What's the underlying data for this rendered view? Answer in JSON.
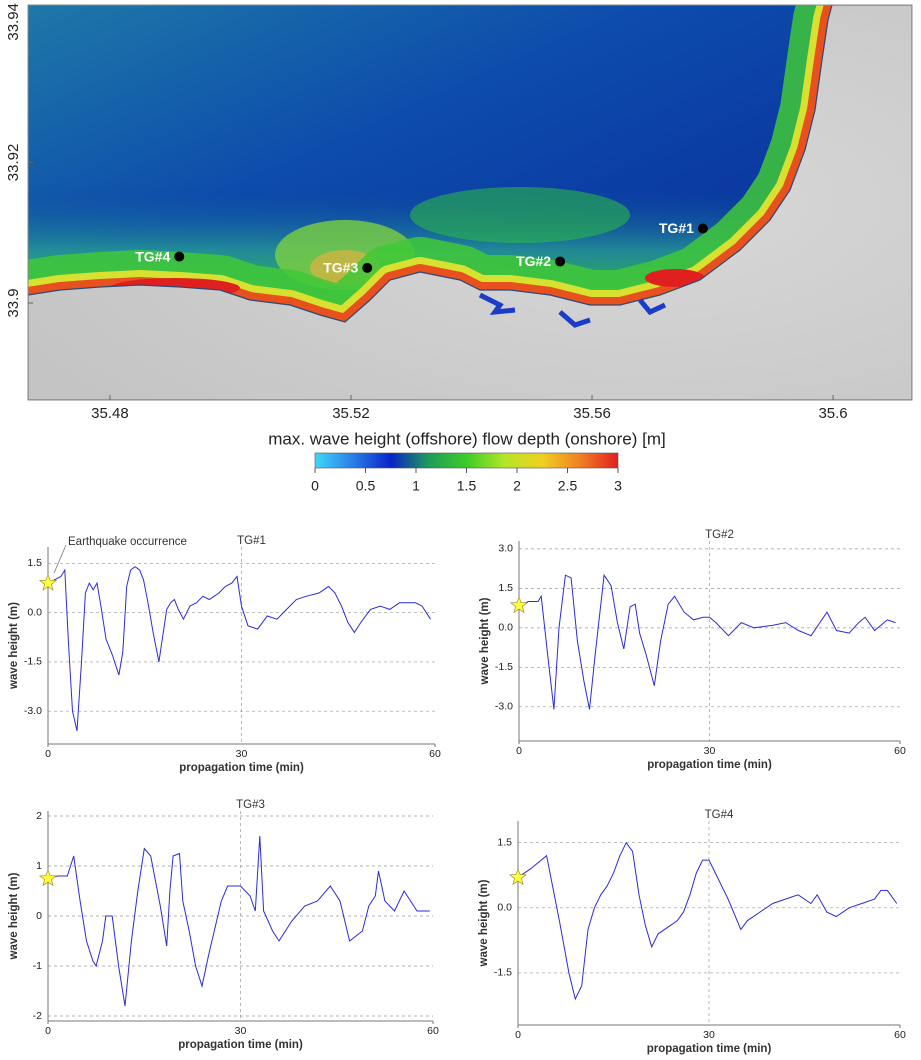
{
  "chart_data": [
    {
      "type": "map",
      "xlim": [
        35.4664,
        35.6131
      ],
      "ylim": [
        33.8862,
        33.9424
      ],
      "xticks": [
        35.48,
        35.52,
        35.56,
        35.6
      ],
      "yticks": [
        33.94,
        33.92,
        33.9
      ],
      "points": [
        {
          "label": "TG#1",
          "x": 35.5784,
          "y": 33.9106
        },
        {
          "label": "TG#2",
          "x": 35.5547,
          "y": 33.9059
        },
        {
          "label": "TG#3",
          "x": 35.5227,
          "y": 33.905
        },
        {
          "label": "TG#4",
          "x": 35.4915,
          "y": 33.9066
        }
      ],
      "point_color": "#000000",
      "colorbar": {
        "title": "max. wave height (offshore) flow depth (onshore) [m]",
        "lim": [
          0,
          3
        ],
        "ticks": [
          0,
          0.5,
          1,
          1.5,
          2,
          2.5,
          3
        ],
        "colors": [
          "#3fd7f7",
          "#2a7fe6",
          "#0a22c8",
          "#1f9c5a",
          "#3ccc28",
          "#b4e628",
          "#f0d020",
          "#f08020",
          "#e02020"
        ]
      }
    },
    {
      "type": "line",
      "title": "TG#1",
      "annotation": "Earthquake occurrence",
      "x_label": "propagation time (min)",
      "y_label": "wave height (m)",
      "xlim": [
        0,
        60
      ],
      "ylim": [
        -4,
        2
      ],
      "xticks": [
        0,
        30,
        60
      ],
      "yticks": [
        1.5,
        {
          "value": 0,
          "label": "0.0"
        },
        -1.5,
        {
          "value": -3,
          "label": "-3.0"
        }
      ],
      "color": "#2b2bdc",
      "start_marker_color": "#ffff40",
      "x": [
        0,
        1,
        2,
        2.6,
        3.2,
        3.8,
        4.5,
        5.2,
        5.8,
        6.4,
        7,
        7.6,
        8.2,
        9,
        10,
        11,
        11.6,
        12.2,
        12.8,
        13.5,
        14.2,
        14.8,
        15.5,
        16.3,
        17.2,
        17.8,
        18.4,
        19,
        19.6,
        20.2,
        21,
        22,
        23,
        24,
        25,
        26.5,
        27.5,
        28.5,
        29.3,
        30,
        31,
        32.5,
        34,
        35.5,
        37,
        38.5,
        40,
        42,
        43.5,
        44.5,
        45.5,
        46.5,
        47.5,
        48.5,
        50,
        51.5,
        53,
        54.5,
        56,
        57,
        58,
        59.3
      ],
      "values": [
        0.9,
        1.0,
        1.1,
        1.3,
        -1.0,
        -3.0,
        -3.6,
        -1.5,
        0.6,
        0.9,
        0.7,
        0.9,
        0.2,
        -0.8,
        -1.3,
        -1.9,
        -1.2,
        0.8,
        1.3,
        1.4,
        1.3,
        1.0,
        0.3,
        -0.6,
        -1.5,
        -0.7,
        0.1,
        0.3,
        0.4,
        0.1,
        -0.2,
        0.2,
        0.3,
        0.5,
        0.4,
        0.6,
        0.8,
        0.9,
        1.1,
        0.2,
        -0.4,
        -0.5,
        -0.1,
        -0.2,
        0.1,
        0.4,
        0.5,
        0.6,
        0.8,
        0.6,
        0.2,
        -0.3,
        -0.6,
        -0.3,
        0.1,
        0.2,
        0.1,
        0.3,
        0.3,
        0.3,
        0.2,
        -0.2
      ]
    },
    {
      "type": "line",
      "title": "TG#2",
      "x_label": "propagation time (min)",
      "y_label": "wave height (m)",
      "xlim": [
        0,
        60
      ],
      "ylim": [
        -4.3,
        3.3
      ],
      "xticks": [
        0,
        30,
        60
      ],
      "yticks": [
        {
          "value": 3,
          "label": "3.0"
        },
        1.5,
        {
          "value": 0,
          "label": "0.0"
        },
        -1.5,
        {
          "value": -3,
          "label": "-3.0"
        }
      ],
      "color": "#2b2bdc",
      "start_marker_color": "#ffff40",
      "x": [
        0,
        1.5,
        3,
        3.5,
        4.5,
        5.5,
        6.3,
        7.3,
        8.2,
        9.2,
        10.2,
        11.1,
        12,
        13.4,
        14.5,
        15.5,
        16.5,
        17.5,
        18.3,
        19,
        20,
        21.3,
        22.3,
        23.5,
        24.5,
        26,
        27.5,
        29,
        30,
        31,
        33,
        35,
        37,
        40,
        42,
        44,
        46,
        48.5,
        50,
        52,
        53.5,
        54.5,
        56,
        58,
        59.3
      ],
      "values": [
        0.85,
        1.0,
        1.0,
        1.2,
        -1.0,
        -3.1,
        0.0,
        2.0,
        1.9,
        -0.5,
        -2.0,
        -3.1,
        -1.0,
        2.0,
        1.6,
        0.2,
        -0.8,
        0.8,
        0.9,
        -0.2,
        -1.0,
        -2.2,
        -0.5,
        0.9,
        1.2,
        0.6,
        0.3,
        0.4,
        0.4,
        0.2,
        -0.3,
        0.2,
        0.0,
        0.1,
        0.2,
        -0.1,
        -0.3,
        0.6,
        -0.1,
        -0.2,
        0.2,
        0.4,
        -0.1,
        0.3,
        0.2
      ]
    },
    {
      "type": "line",
      "title": "TG#3",
      "x_label": "propagation time (min)",
      "y_label": "wave height (m)",
      "xlim": [
        0,
        60
      ],
      "ylim": [
        -2.1,
        2.1
      ],
      "xticks": [
        0,
        30,
        60
      ],
      "yticks": [
        2,
        1,
        0,
        -1,
        -2
      ],
      "color": "#2b2bdc",
      "start_marker_color": "#ffff40",
      "x": [
        0,
        1.5,
        3,
        4,
        5,
        6,
        7,
        7.5,
        8.5,
        9,
        10,
        11,
        12,
        13,
        14,
        15,
        16,
        17.5,
        18.5,
        19,
        19.5,
        20.5,
        21,
        22,
        23,
        24,
        25,
        27,
        28,
        30,
        31.5,
        32.3,
        33,
        33.6,
        35,
        36,
        38,
        40,
        42,
        44,
        45.5,
        47,
        49,
        50,
        51,
        51.5,
        52.5,
        54,
        55.5,
        57.5,
        59.5
      ],
      "values": [
        0.75,
        0.8,
        0.8,
        1.2,
        0.3,
        -0.5,
        -0.9,
        -1.0,
        -0.5,
        0,
        0,
        -1.0,
        -1.8,
        -0.5,
        0.5,
        1.35,
        1.2,
        0.2,
        -0.6,
        0.5,
        1.2,
        1.25,
        0.3,
        -0.3,
        -1.0,
        -1.4,
        -0.8,
        0.3,
        0.6,
        0.6,
        0.4,
        0.1,
        1.6,
        0.1,
        -0.3,
        -0.5,
        -0.1,
        0.2,
        0.3,
        0.6,
        0.3,
        -0.5,
        -0.3,
        0.2,
        0.4,
        0.9,
        0.3,
        0.1,
        0.5,
        0.1,
        0.1
      ]
    },
    {
      "type": "line",
      "title": "TG#4",
      "x_label": "propagation time (min)",
      "y_label": "wave height (m)",
      "xlim": [
        0,
        60
      ],
      "ylim": [
        -2.7,
        2.0
      ],
      "xticks": [
        0,
        30,
        60
      ],
      "yticks": [
        1.5,
        {
          "value": 0,
          "label": "0.0"
        },
        -1.5
      ],
      "color": "#2b2bdc",
      "start_marker_color": "#ffff40",
      "x": [
        0,
        2,
        4.5,
        6.5,
        8,
        9,
        10,
        11,
        12,
        13,
        14,
        15,
        16,
        17,
        18,
        19,
        20,
        21,
        22,
        24,
        25,
        26,
        27,
        28,
        29,
        30,
        31,
        33,
        35,
        36,
        38,
        40,
        42,
        44,
        46,
        47,
        48.5,
        50,
        52,
        54,
        56,
        57,
        58,
        59.5
      ],
      "values": [
        0.7,
        0.9,
        1.2,
        -0.3,
        -1.5,
        -2.1,
        -1.8,
        -0.5,
        0,
        0.3,
        0.5,
        0.8,
        1.2,
        1.5,
        1.3,
        0.3,
        -0.4,
        -0.9,
        -0.6,
        -0.4,
        -0.3,
        -0.1,
        0.3,
        0.8,
        1.1,
        1.1,
        0.8,
        0.2,
        -0.5,
        -0.3,
        -0.1,
        0.1,
        0.2,
        0.3,
        0.1,
        0.3,
        -0.1,
        -0.2,
        0,
        0.1,
        0.2,
        0.4,
        0.4,
        0.1
      ]
    }
  ]
}
